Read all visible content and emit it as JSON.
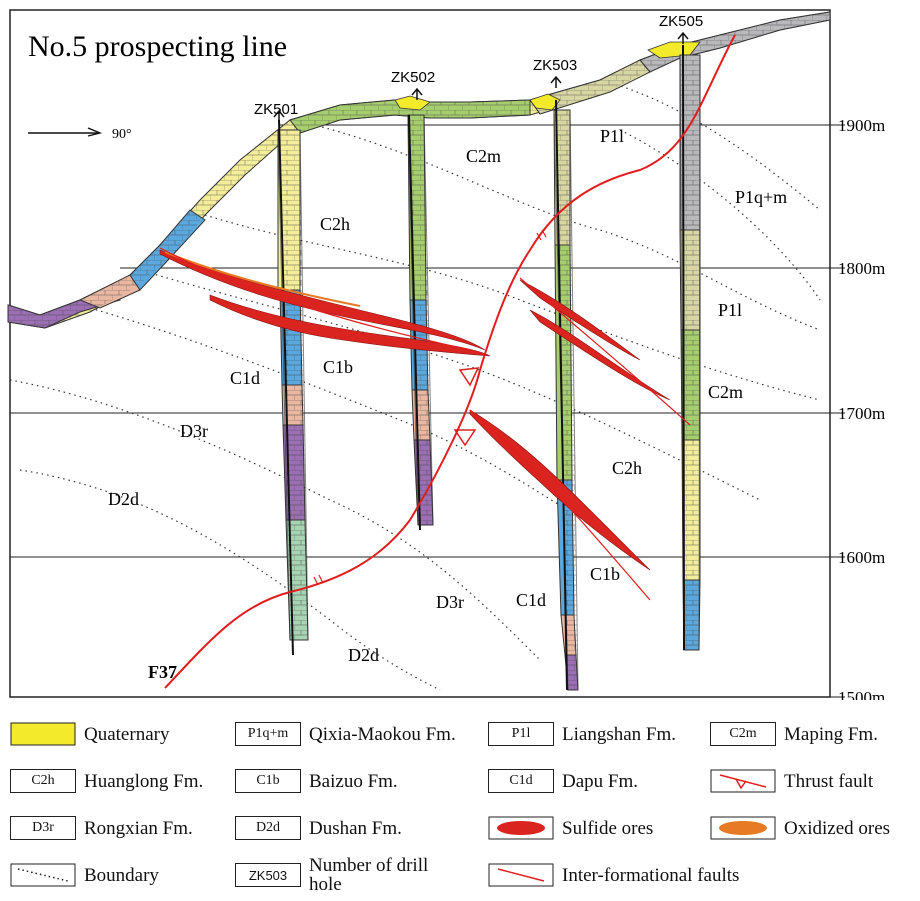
{
  "title": "No.5 prospecting line",
  "orientation": "90°",
  "fault_name": "F37",
  "fault_name_sub": "37",
  "elevations": [
    "1900m",
    "1800m",
    "1700m",
    "1600m",
    "1500m"
  ],
  "drill_holes": [
    "ZK501",
    "ZK502",
    "ZK503",
    "ZK505"
  ],
  "formation_labels": {
    "c2m_upper": "C2m",
    "c2h_upper": "C2h",
    "p1l_upper": "P1l",
    "p1qm": "P1q+m",
    "p1l_right": "P1l",
    "c2m_right": "C2m",
    "c1b_left": "C1b",
    "c1d_left": "C1d",
    "d3r_left": "D3r",
    "d2d_left": "D2d",
    "c2h_right": "C2h",
    "c1b_right": "C1b",
    "c1d_bottom": "C1d",
    "d3r_bottom": "D3r",
    "d2d_bottom": "D2d"
  },
  "legend": {
    "quaternary": "Quaternary",
    "qixia": "Qixia-Maokou Fm.",
    "liangshan": "Liangshan Fm.",
    "maping": "Maping Fm.",
    "huanglong": "Huanglong Fm.",
    "baizuo": "Baizuo Fm.",
    "dapu": "Dapu Fm.",
    "thrust": "Thrust fault",
    "rongxian": "Rongxian Fm.",
    "dushan": "Dushan Fm.",
    "sulfide": "Sulfide ores",
    "oxidized": "Oxidized ores",
    "boundary": "Boundary",
    "drill_number": "Number of drill hole",
    "interfaults": "Inter-formational faults",
    "box_p1qm": "P1q+m",
    "box_p1l": "P1l",
    "box_c2m": "C2m",
    "box_c2h": "C2h",
    "box_c1b": "C1b",
    "box_c1d": "C1d",
    "box_d3r": "D3r",
    "box_d2d": "D2d",
    "box_zk": "ZK503"
  },
  "colors": {
    "quaternary": "#f2ea2a",
    "qixia": "#b9b9bc",
    "liangshan": "#d8d7a4",
    "maping": "#a6cd6e",
    "huanglong": "#f4ee9a",
    "baizuo": "#5aa8de",
    "dapu": "#e9b7a2",
    "rongxian": "#9a6fb3",
    "dushan": "#a7d5b4",
    "ore": "#d9241f",
    "oxidized": "#e77a25",
    "fault": "#e01e1e"
  }
}
